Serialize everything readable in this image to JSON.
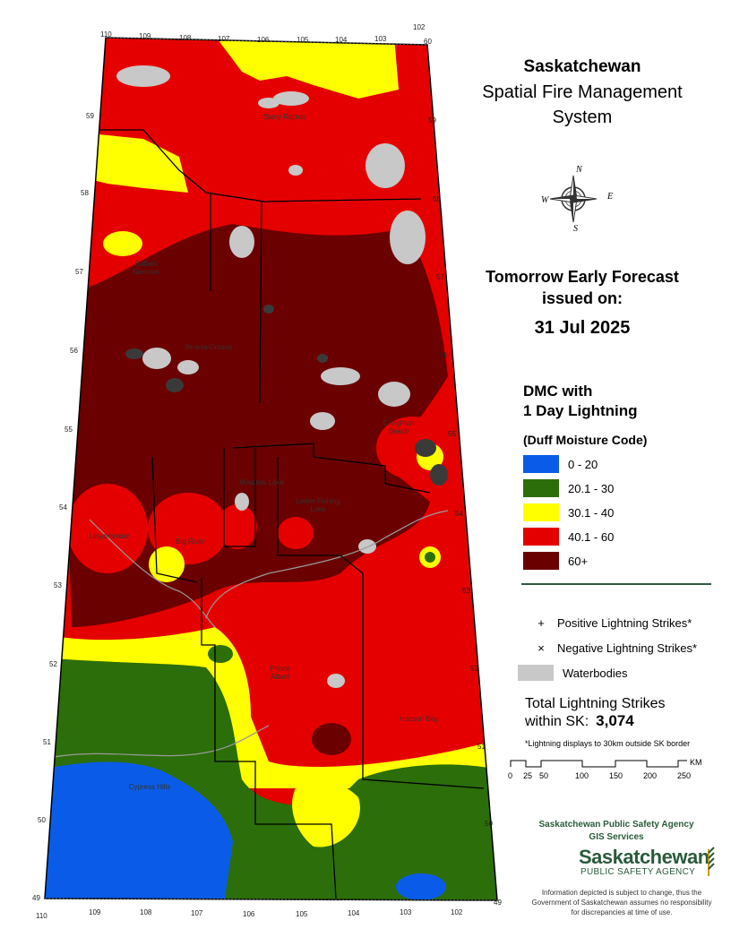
{
  "title": {
    "line1": "Saskatchewan",
    "line2": "Spatial Fire Management",
    "line3": "System"
  },
  "compass": {
    "icon": "compass-rose-icon",
    "n": "N",
    "s": "S",
    "e": "E",
    "w": "W"
  },
  "forecast": {
    "line1": "Tomorrow Early Forecast",
    "line2": "issued on:",
    "date": "31 Jul 2025"
  },
  "layer": {
    "line1": "DMC with",
    "line2": "1 Day Lightning",
    "subtitle": "(Duff Moisture Code)"
  },
  "legend": [
    {
      "label": "0 - 20",
      "color": "#0a5ce8"
    },
    {
      "label": "20.1 - 30",
      "color": "#2c6e0a"
    },
    {
      "label": "30.1 - 40",
      "color": "#ffff00"
    },
    {
      "label": "40.1 - 60",
      "color": "#e50000"
    },
    {
      "label": "60+",
      "color": "#6b0000"
    }
  ],
  "symbols": {
    "positive": {
      "glyph": "+",
      "label": "Positive Lightning Strikes*"
    },
    "negative": {
      "glyph": "×",
      "label": "Negative Lightning Strikes*"
    },
    "water": {
      "label": "Waterbodies",
      "color": "#c8c8c8"
    }
  },
  "total": {
    "line1": "Total Lightning Strikes",
    "line2": "within SK:",
    "value": "3,074"
  },
  "note": "*Lightning displays to 30km outside SK border",
  "scale": {
    "unit": "KM",
    "ticks": [
      "0",
      "25",
      "50",
      "100",
      "150",
      "200",
      "250"
    ]
  },
  "agency": {
    "line1": "Saskatchewan Public Safety Agency",
    "line2": "GIS  Services"
  },
  "logo": {
    "word": "Saskatchewan",
    "sub": "PUBLIC SAFETY AGENCY"
  },
  "disclaimer": "Information depicted is subject to change, thus the Government of Saskatchewan assumes no responsibility for discrepancies at time of use.",
  "map": {
    "places": [
      "Stony Rapids",
      "Buffalo Narrows",
      "Ile-a-la-Crosse",
      "Creighton Beach",
      "Meadow Lake",
      "Lower Fishing Lake",
      "Lloydminster",
      "Big River",
      "Prince Albert",
      "Hudson Bay",
      "Cypress Hills"
    ],
    "lon_top": [
      "110",
      "109",
      "108",
      "107",
      "106",
      "105",
      "104",
      "103",
      "102"
    ],
    "lon_bottom": [
      "110",
      "109",
      "108",
      "107",
      "106",
      "105",
      "104",
      "103",
      "102"
    ],
    "lat_left": [
      "59",
      "58",
      "57",
      "56",
      "55",
      "54",
      "53",
      "52",
      "51",
      "50",
      "49"
    ],
    "lat_right": [
      "60",
      "59",
      "58",
      "57",
      "56",
      "55",
      "54",
      "53",
      "52",
      "51",
      "50",
      "49"
    ]
  }
}
